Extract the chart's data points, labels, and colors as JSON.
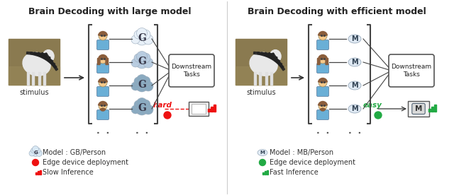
{
  "title_left": "Brain Decoding with large model",
  "title_right": "Brain Decoding with efficient model",
  "legend_left": [
    {
      "text": "Model : GB/Person"
    },
    {
      "text": "Edge device deployment"
    },
    {
      "text": "Slow Inference"
    }
  ],
  "legend_right": [
    {
      "text": "Model : MB/Person"
    },
    {
      "text": "Edge device deployment"
    },
    {
      "text": "Fast Inference"
    }
  ],
  "label_stimulus": "stimulus",
  "label_hard": "hard",
  "label_easy": "easy",
  "bg_color": "#ffffff",
  "body_color": "#6aafd6",
  "skin_color": "#f5c98a",
  "hair_color": "#8B5E3C",
  "cloud_light": "#e8f0f8",
  "cloud_mid": "#b8cce0",
  "cloud_dark": "#8aaac0",
  "M_box_color": "#e8e8e8",
  "arrow_color": "#333333",
  "red_color": "#ee1111",
  "green_color": "#22aa44",
  "bracket_color": "#444444",
  "text_color": "#222222",
  "fig_width": 6.4,
  "fig_height": 2.76,
  "dpi": 100
}
